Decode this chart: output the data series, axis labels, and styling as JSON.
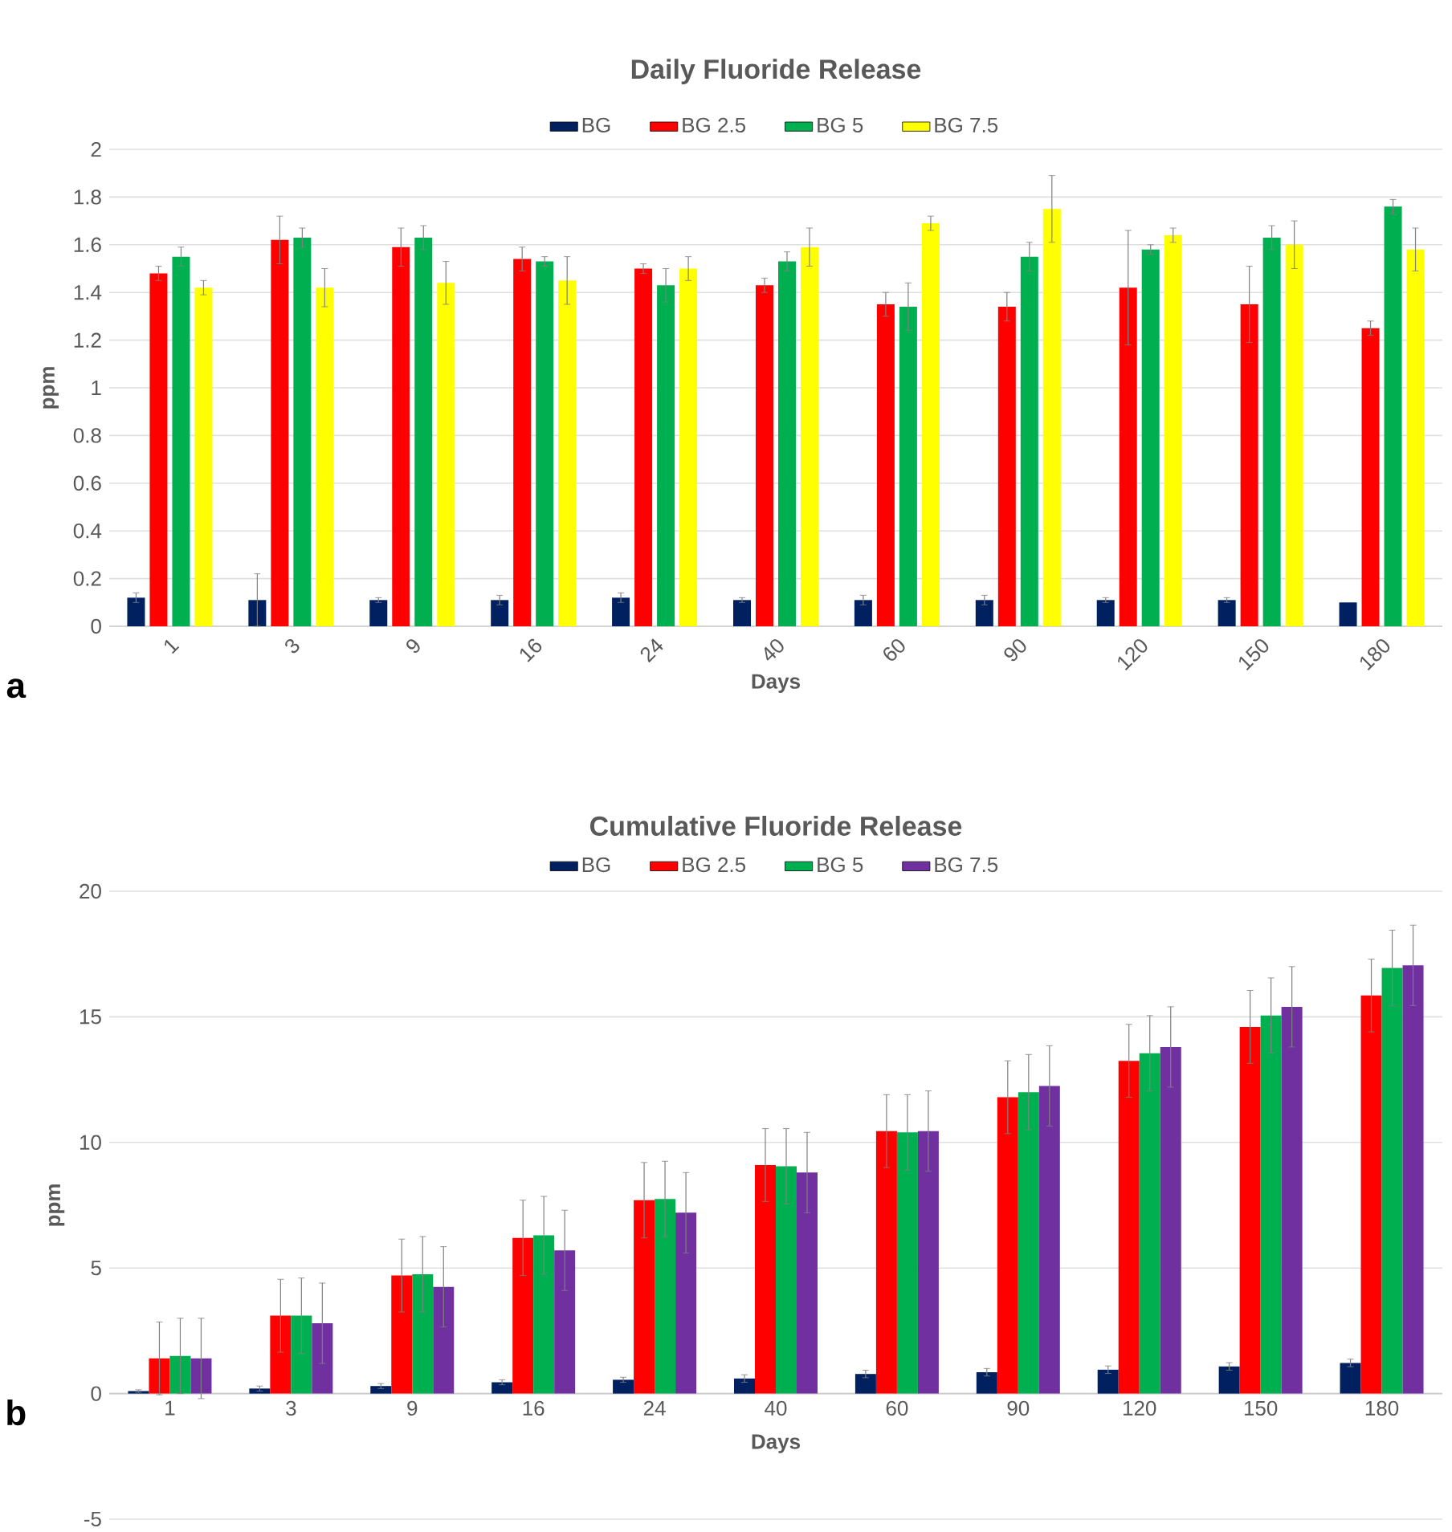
{
  "chart_data": [
    {
      "type": "bar",
      "title": "Daily Fluoride Release",
      "xlabel": "Days",
      "ylabel": "ppm",
      "categories": [
        "1",
        "3",
        "9",
        "16",
        "24",
        "40",
        "60",
        "90",
        "120",
        "150",
        "180"
      ],
      "series": [
        {
          "name": "BG",
          "color": "#002060",
          "values": [
            0.12,
            0.11,
            0.11,
            0.11,
            0.12,
            0.11,
            0.11,
            0.11,
            0.11,
            0.11,
            0.1
          ],
          "errors": [
            0.02,
            0.11,
            0.01,
            0.02,
            0.02,
            0.01,
            0.02,
            0.02,
            0.01,
            0.01,
            null
          ]
        },
        {
          "name": "BG 2.5",
          "color": "#ff0000",
          "values": [
            1.48,
            1.62,
            1.59,
            1.54,
            1.5,
            1.43,
            1.35,
            1.34,
            1.42,
            1.35,
            1.25
          ],
          "errors": [
            0.03,
            0.1,
            0.08,
            0.05,
            0.02,
            0.03,
            0.05,
            0.06,
            0.24,
            0.16,
            0.03
          ]
        },
        {
          "name": "BG 5",
          "color": "#00b050",
          "values": [
            1.55,
            1.63,
            1.63,
            1.53,
            1.43,
            1.53,
            1.34,
            1.55,
            1.58,
            1.63,
            1.76
          ],
          "errors": [
            0.04,
            0.04,
            0.05,
            0.02,
            0.07,
            0.04,
            0.1,
            0.06,
            0.02,
            0.05,
            0.03
          ]
        },
        {
          "name": "BG 7.5",
          "color": "#ffff00",
          "values": [
            1.42,
            1.42,
            1.44,
            1.45,
            1.5,
            1.59,
            1.69,
            1.75,
            1.64,
            1.6,
            1.58
          ],
          "errors": [
            0.03,
            0.08,
            0.09,
            0.1,
            0.05,
            0.08,
            0.03,
            0.14,
            0.03,
            0.1,
            0.09
          ]
        }
      ],
      "ylim": [
        0,
        2
      ],
      "yticks": [
        0,
        0.2,
        0.4,
        0.6,
        0.8,
        1,
        1.2,
        1.4,
        1.6,
        1.8,
        2
      ],
      "grid": "y",
      "legend": "top",
      "annotations": [
        "a"
      ]
    },
    {
      "type": "bar",
      "title": "Cumulative Fluoride Release",
      "xlabel": "Days",
      "ylabel": "ppm",
      "categories": [
        "1",
        "3",
        "9",
        "16",
        "24",
        "40",
        "60",
        "90",
        "120",
        "150",
        "180"
      ],
      "series": [
        {
          "name": "BG",
          "color": "#002060",
          "values": [
            0.1,
            0.2,
            0.3,
            0.45,
            0.55,
            0.6,
            0.78,
            0.85,
            0.95,
            1.08,
            1.22
          ],
          "errors": [
            0.05,
            0.1,
            0.1,
            0.1,
            0.1,
            0.15,
            0.15,
            0.15,
            0.15,
            0.15,
            0.15
          ]
        },
        {
          "name": "BG 2.5",
          "color": "#ff0000",
          "values": [
            1.4,
            3.1,
            4.7,
            6.2,
            7.7,
            9.1,
            10.45,
            11.8,
            13.25,
            14.6,
            15.85
          ],
          "errors": [
            1.45,
            1.45,
            1.45,
            1.5,
            1.5,
            1.45,
            1.45,
            1.45,
            1.45,
            1.45,
            1.45
          ]
        },
        {
          "name": "BG 5",
          "color": "#00b050",
          "values": [
            1.5,
            3.1,
            4.75,
            6.3,
            7.75,
            9.05,
            10.4,
            12.0,
            13.55,
            15.05,
            16.95
          ],
          "errors": [
            1.5,
            1.5,
            1.5,
            1.55,
            1.5,
            1.5,
            1.5,
            1.5,
            1.5,
            1.5,
            1.5
          ]
        },
        {
          "name": "BG 7.5",
          "color": "#7030a0",
          "values": [
            1.4,
            2.8,
            4.25,
            5.7,
            7.2,
            8.8,
            10.45,
            12.25,
            13.8,
            15.4,
            17.05
          ],
          "errors": [
            1.6,
            1.6,
            1.6,
            1.6,
            1.6,
            1.6,
            1.6,
            1.6,
            1.6,
            1.6,
            1.6
          ]
        }
      ],
      "ylim": [
        -5,
        20
      ],
      "yticks": [
        -5,
        0,
        5,
        10,
        15,
        20
      ],
      "grid": "y",
      "legend": "top",
      "annotations": [
        "b"
      ]
    }
  ]
}
